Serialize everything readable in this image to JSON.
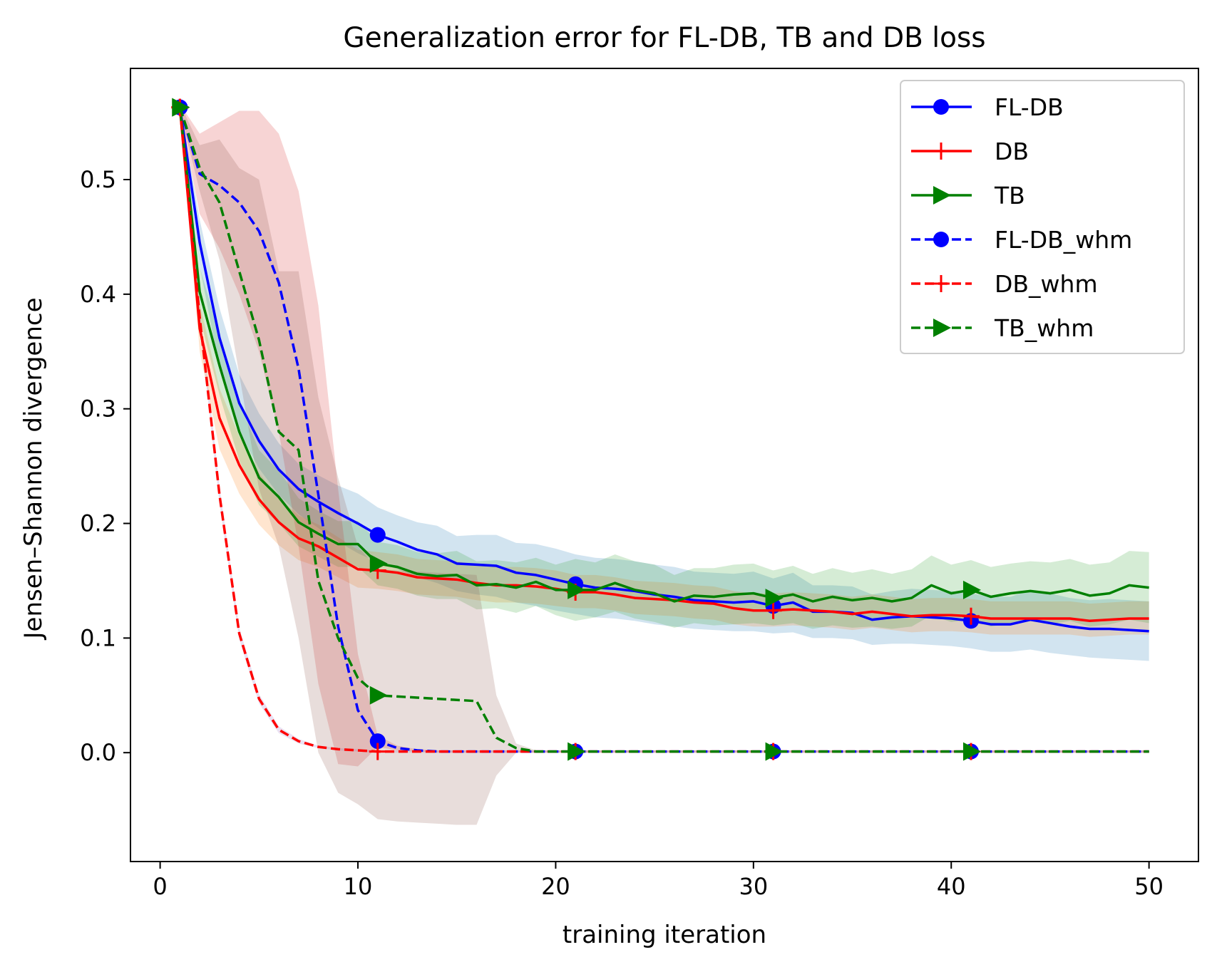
{
  "chart_data": {
    "type": "line",
    "title": "Generalization error for FL-DB, TB and DB loss",
    "xlabel": "training iteration",
    "ylabel": "Jensen–Shannon divergence",
    "xlim": [
      -1.5,
      52.5
    ],
    "ylim": [
      -0.095,
      0.597
    ],
    "xticks": [
      0,
      10,
      20,
      30,
      40,
      50
    ],
    "xtick_labels": [
      "0",
      "10",
      "20",
      "30",
      "40",
      "50"
    ],
    "yticks": [
      0.0,
      0.1,
      0.2,
      0.3,
      0.4,
      0.5
    ],
    "ytick_labels": [
      "0.0",
      "0.1",
      "0.2",
      "0.3",
      "0.4",
      "0.5"
    ],
    "legend_position": "top-right",
    "x": [
      1,
      2,
      3,
      4,
      5,
      6,
      7,
      8,
      9,
      10,
      11,
      12,
      13,
      14,
      15,
      16,
      17,
      18,
      19,
      20,
      21,
      22,
      23,
      24,
      25,
      26,
      27,
      28,
      29,
      30,
      31,
      32,
      33,
      34,
      35,
      36,
      37,
      38,
      39,
      40,
      41,
      42,
      43,
      44,
      45,
      46,
      47,
      48,
      49,
      50
    ],
    "series": [
      {
        "name": "FL-DB",
        "color": "#0000ff",
        "dash": "solid",
        "marker": "circle",
        "values": [
          0.563,
          0.445,
          0.362,
          0.305,
          0.272,
          0.247,
          0.23,
          0.219,
          0.209,
          0.2,
          0.19,
          0.184,
          0.177,
          0.173,
          0.165,
          0.164,
          0.163,
          0.157,
          0.155,
          0.151,
          0.147,
          0.144,
          0.143,
          0.141,
          0.138,
          0.136,
          0.133,
          0.132,
          0.131,
          0.132,
          0.128,
          0.131,
          0.123,
          0.123,
          0.122,
          0.116,
          0.118,
          0.119,
          0.118,
          0.117,
          0.115,
          0.112,
          0.112,
          0.116,
          0.113,
          0.11,
          0.108,
          0.108,
          0.107,
          0.106
        ],
        "band_lower": [
          0.56,
          0.425,
          0.335,
          0.28,
          0.248,
          0.225,
          0.208,
          0.196,
          0.184,
          0.174,
          0.166,
          0.16,
          0.153,
          0.148,
          0.141,
          0.138,
          0.136,
          0.131,
          0.128,
          0.124,
          0.121,
          0.118,
          0.117,
          0.115,
          0.112,
          0.11,
          0.108,
          0.107,
          0.106,
          0.106,
          0.104,
          0.105,
          0.1,
          0.1,
          0.099,
          0.094,
          0.095,
          0.095,
          0.094,
          0.093,
          0.091,
          0.088,
          0.088,
          0.09,
          0.087,
          0.085,
          0.083,
          0.082,
          0.081,
          0.08
        ],
        "band_upper": [
          0.566,
          0.465,
          0.388,
          0.33,
          0.296,
          0.27,
          0.252,
          0.242,
          0.233,
          0.226,
          0.214,
          0.207,
          0.201,
          0.198,
          0.189,
          0.19,
          0.19,
          0.183,
          0.182,
          0.178,
          0.173,
          0.17,
          0.169,
          0.167,
          0.164,
          0.162,
          0.158,
          0.157,
          0.156,
          0.158,
          0.152,
          0.157,
          0.146,
          0.146,
          0.145,
          0.138,
          0.141,
          0.143,
          0.142,
          0.141,
          0.139,
          0.136,
          0.136,
          0.142,
          0.139,
          0.135,
          0.133,
          0.134,
          0.133,
          0.132
        ],
        "band_color": "#1f77b4"
      },
      {
        "name": "DB",
        "color": "#ff0000",
        "dash": "solid",
        "marker": "plus",
        "values": [
          0.563,
          0.37,
          0.292,
          0.251,
          0.221,
          0.201,
          0.187,
          0.18,
          0.17,
          0.16,
          0.159,
          0.157,
          0.153,
          0.152,
          0.151,
          0.148,
          0.146,
          0.146,
          0.145,
          0.143,
          0.14,
          0.14,
          0.138,
          0.135,
          0.134,
          0.133,
          0.131,
          0.13,
          0.126,
          0.124,
          0.124,
          0.125,
          0.124,
          0.123,
          0.121,
          0.123,
          0.121,
          0.119,
          0.12,
          0.12,
          0.119,
          0.117,
          0.117,
          0.117,
          0.117,
          0.117,
          0.115,
          0.116,
          0.117,
          0.117
        ],
        "band_lower": [
          0.56,
          0.35,
          0.265,
          0.226,
          0.199,
          0.181,
          0.168,
          0.162,
          0.153,
          0.144,
          0.143,
          0.141,
          0.138,
          0.137,
          0.136,
          0.133,
          0.131,
          0.131,
          0.13,
          0.128,
          0.126,
          0.126,
          0.124,
          0.121,
          0.12,
          0.119,
          0.117,
          0.116,
          0.112,
          0.11,
          0.11,
          0.111,
          0.11,
          0.109,
          0.107,
          0.109,
          0.107,
          0.105,
          0.106,
          0.106,
          0.105,
          0.103,
          0.103,
          0.103,
          0.103,
          0.103,
          0.101,
          0.102,
          0.103,
          0.103
        ],
        "band_upper": [
          0.566,
          0.392,
          0.318,
          0.276,
          0.244,
          0.222,
          0.207,
          0.199,
          0.188,
          0.177,
          0.175,
          0.173,
          0.169,
          0.168,
          0.167,
          0.164,
          0.162,
          0.162,
          0.161,
          0.159,
          0.155,
          0.155,
          0.153,
          0.15,
          0.149,
          0.148,
          0.146,
          0.145,
          0.141,
          0.139,
          0.139,
          0.14,
          0.139,
          0.138,
          0.136,
          0.138,
          0.136,
          0.134,
          0.135,
          0.135,
          0.134,
          0.132,
          0.132,
          0.132,
          0.132,
          0.132,
          0.13,
          0.131,
          0.132,
          0.132
        ],
        "band_color": "#ff7f0e"
      },
      {
        "name": "TB",
        "color": "#008000",
        "dash": "solid",
        "marker": "triangle-right",
        "values": [
          0.563,
          0.402,
          0.338,
          0.28,
          0.24,
          0.223,
          0.201,
          0.191,
          0.182,
          0.182,
          0.165,
          0.162,
          0.156,
          0.154,
          0.155,
          0.146,
          0.147,
          0.144,
          0.149,
          0.142,
          0.142,
          0.142,
          0.148,
          0.142,
          0.139,
          0.132,
          0.137,
          0.136,
          0.138,
          0.139,
          0.135,
          0.138,
          0.132,
          0.136,
          0.133,
          0.135,
          0.132,
          0.135,
          0.146,
          0.139,
          0.142,
          0.136,
          0.139,
          0.141,
          0.139,
          0.142,
          0.137,
          0.139,
          0.146,
          0.144
        ],
        "band_lower": [
          0.56,
          0.38,
          0.312,
          0.255,
          0.216,
          0.2,
          0.18,
          0.171,
          0.162,
          0.162,
          0.146,
          0.143,
          0.137,
          0.134,
          0.134,
          0.125,
          0.126,
          0.122,
          0.128,
          0.12,
          0.115,
          0.118,
          0.123,
          0.117,
          0.114,
          0.109,
          0.113,
          0.111,
          0.112,
          0.113,
          0.111,
          0.113,
          0.108,
          0.111,
          0.109,
          0.11,
          0.108,
          0.11,
          0.12,
          0.114,
          0.116,
          0.11,
          0.113,
          0.115,
          0.112,
          0.115,
          0.11,
          0.112,
          0.116,
          0.113
        ],
        "band_upper": [
          0.566,
          0.424,
          0.364,
          0.305,
          0.264,
          0.246,
          0.222,
          0.211,
          0.202,
          0.202,
          0.184,
          0.181,
          0.175,
          0.174,
          0.176,
          0.167,
          0.168,
          0.166,
          0.17,
          0.164,
          0.169,
          0.166,
          0.173,
          0.167,
          0.164,
          0.155,
          0.161,
          0.161,
          0.164,
          0.165,
          0.159,
          0.163,
          0.156,
          0.161,
          0.157,
          0.16,
          0.156,
          0.16,
          0.172,
          0.164,
          0.168,
          0.162,
          0.165,
          0.167,
          0.166,
          0.169,
          0.164,
          0.166,
          0.176,
          0.175
        ],
        "band_color": "#2ca02c"
      },
      {
        "name": "FL-DB_whm",
        "color": "#0000ff",
        "dash": "dashed",
        "marker": "circle",
        "values": [
          0.563,
          0.505,
          0.495,
          0.48,
          0.455,
          0.41,
          0.335,
          0.225,
          0.11,
          0.037,
          0.01,
          0.004,
          0.002,
          0.001,
          0.001,
          0.001,
          0.001,
          0.001,
          0.001,
          0.001,
          0.001,
          0.001,
          0.001,
          0.001,
          0.001,
          0.001,
          0.001,
          0.001,
          0.001,
          0.001,
          0.001,
          0.001,
          0.001,
          0.001,
          0.001,
          0.001,
          0.001,
          0.001,
          0.001,
          0.001,
          0.001,
          0.001,
          0.001,
          0.001,
          0.001,
          0.001,
          0.001,
          0.001,
          0.001,
          0.001
        ],
        "band_lower": [
          0.56,
          0.47,
          0.44,
          0.4,
          0.35,
          0.28,
          0.18,
          0.06,
          -0.01,
          -0.012,
          0.005,
          0.002,
          0.001,
          0.0,
          0.0,
          0.0,
          0.0,
          0.0,
          0.0,
          0.0,
          0.0,
          0.0,
          0.0,
          0.0,
          0.0,
          0.0,
          0.0,
          0.0,
          0.0,
          0.0,
          0.0,
          0.0,
          0.0,
          0.0,
          0.0,
          0.0,
          0.0,
          0.0,
          0.0,
          0.0,
          0.0,
          0.0,
          0.0,
          0.0,
          0.0,
          0.0,
          0.0,
          0.0,
          0.0,
          0.0
        ],
        "band_upper": [
          0.566,
          0.54,
          0.55,
          0.56,
          0.56,
          0.54,
          0.49,
          0.39,
          0.23,
          0.086,
          0.015,
          0.006,
          0.003,
          0.002,
          0.002,
          0.002,
          0.002,
          0.002,
          0.002,
          0.002,
          0.002,
          0.002,
          0.002,
          0.002,
          0.002,
          0.002,
          0.002,
          0.002,
          0.002,
          0.002,
          0.002,
          0.002,
          0.002,
          0.002,
          0.002,
          0.002,
          0.002,
          0.002,
          0.002,
          0.002,
          0.002,
          0.002,
          0.002,
          0.002,
          0.002,
          0.002,
          0.002,
          0.002,
          0.002,
          0.002
        ],
        "band_color": "#d62728"
      },
      {
        "name": "DB_whm",
        "color": "#ff0000",
        "dash": "dashed",
        "marker": "plus",
        "values": [
          0.563,
          0.38,
          0.225,
          0.104,
          0.047,
          0.02,
          0.01,
          0.005,
          0.003,
          0.002,
          0.001,
          0.001,
          0.001,
          0.001,
          0.001,
          0.001,
          0.001,
          0.001,
          0.001,
          0.001,
          0.001,
          0.001,
          0.001,
          0.001,
          0.001,
          0.001,
          0.001,
          0.001,
          0.001,
          0.001,
          0.001,
          0.001,
          0.001,
          0.001,
          0.001,
          0.001,
          0.001,
          0.001,
          0.001,
          0.001,
          0.001,
          0.001,
          0.001,
          0.001,
          0.001,
          0.001,
          0.001,
          0.001,
          0.001,
          0.001
        ],
        "band_lower": [
          0.56,
          0.372,
          0.218,
          0.099,
          0.043,
          0.017,
          0.008,
          0.004,
          0.002,
          0.001,
          0.0,
          0.0,
          0.0,
          0.0,
          0.0,
          0.0,
          0.0,
          0.0,
          0.0,
          0.0,
          0.0,
          0.0,
          0.0,
          0.0,
          0.0,
          0.0,
          0.0,
          0.0,
          0.0,
          0.0,
          0.0,
          0.0,
          0.0,
          0.0,
          0.0,
          0.0,
          0.0,
          0.0,
          0.0,
          0.0,
          0.0,
          0.0,
          0.0,
          0.0,
          0.0,
          0.0,
          0.0,
          0.0,
          0.0,
          0.0
        ],
        "band_upper": [
          0.566,
          0.388,
          0.232,
          0.109,
          0.051,
          0.023,
          0.012,
          0.006,
          0.004,
          0.003,
          0.002,
          0.002,
          0.002,
          0.002,
          0.002,
          0.002,
          0.002,
          0.002,
          0.002,
          0.002,
          0.002,
          0.002,
          0.002,
          0.002,
          0.002,
          0.002,
          0.002,
          0.002,
          0.002,
          0.002,
          0.002,
          0.002,
          0.002,
          0.002,
          0.002,
          0.002,
          0.002,
          0.002,
          0.002,
          0.002,
          0.002,
          0.002,
          0.002,
          0.002,
          0.002,
          0.002,
          0.002,
          0.002,
          0.002,
          0.002
        ],
        "band_color": "#9467bd"
      },
      {
        "name": "TB_whm",
        "color": "#008000",
        "dash": "dashed",
        "marker": "triangle-right",
        "values": [
          0.563,
          0.51,
          0.48,
          0.42,
          0.36,
          0.28,
          0.264,
          0.15,
          0.1,
          0.065,
          0.05,
          0.049,
          0.048,
          0.047,
          0.046,
          0.045,
          0.013,
          0.004,
          0.001,
          0.001,
          0.001,
          0.001,
          0.001,
          0.001,
          0.001,
          0.001,
          0.001,
          0.001,
          0.001,
          0.001,
          0.001,
          0.001,
          0.001,
          0.001,
          0.001,
          0.001,
          0.001,
          0.001,
          0.001,
          0.001,
          0.001,
          0.001,
          0.001,
          0.001,
          0.001,
          0.001,
          0.001,
          0.001,
          0.001,
          0.001
        ],
        "band_lower": [
          0.56,
          0.49,
          0.43,
          0.33,
          0.23,
          0.18,
          0.1,
          0.0,
          -0.035,
          -0.045,
          -0.058,
          -0.06,
          -0.061,
          -0.062,
          -0.063,
          -0.063,
          -0.02,
          0.0,
          0.0,
          0.0,
          0.0,
          0.0,
          0.0,
          0.0,
          0.0,
          0.0,
          0.0,
          0.0,
          0.0,
          0.0,
          0.0,
          0.0,
          0.0,
          0.0,
          0.0,
          0.0,
          0.0,
          0.0,
          0.0,
          0.0,
          0.0,
          0.0,
          0.0,
          0.0,
          0.0,
          0.0,
          0.0,
          0.0,
          0.0,
          0.0
        ],
        "band_upper": [
          0.566,
          0.53,
          0.535,
          0.51,
          0.5,
          0.42,
          0.42,
          0.31,
          0.24,
          0.18,
          0.16,
          0.159,
          0.158,
          0.157,
          0.156,
          0.155,
          0.05,
          0.008,
          0.002,
          0.002,
          0.002,
          0.002,
          0.002,
          0.002,
          0.002,
          0.002,
          0.002,
          0.002,
          0.002,
          0.002,
          0.002,
          0.002,
          0.002,
          0.002,
          0.002,
          0.002,
          0.002,
          0.002,
          0.002,
          0.002,
          0.002,
          0.002,
          0.002,
          0.002,
          0.002,
          0.002,
          0.002,
          0.002,
          0.002,
          0.002
        ],
        "band_color": "#8c564b"
      }
    ]
  }
}
